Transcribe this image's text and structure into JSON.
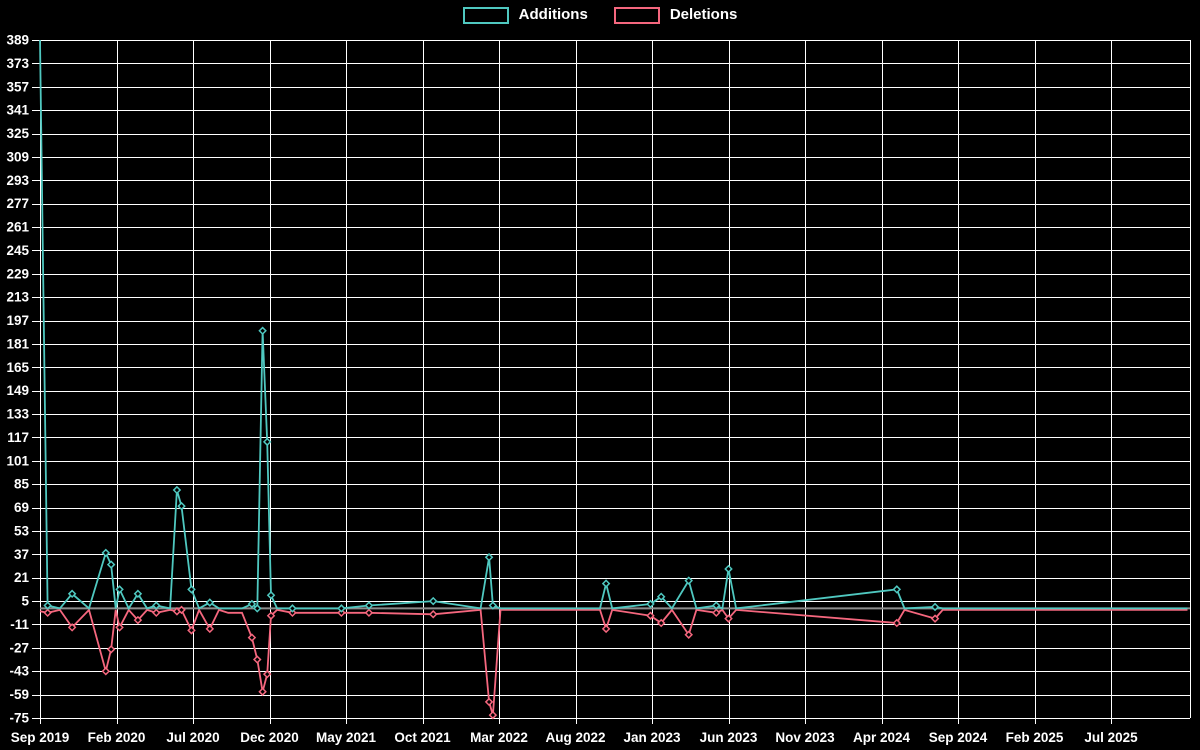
{
  "legend": {
    "items": [
      {
        "label": "Additions",
        "color": "#4fc8c0"
      },
      {
        "label": "Deletions",
        "color": "#f5677e"
      }
    ]
  },
  "colors": {
    "background": "#000000",
    "grid": "#ffffff",
    "zero_line": "#8c8c8c",
    "text": "#ffffff",
    "additions": "#4fc8c0",
    "deletions": "#f5677e"
  },
  "chart_data": {
    "type": "line",
    "title": "",
    "xlabel": "",
    "ylabel": "",
    "grid": true,
    "legend_position": "top-center",
    "x_ticks": [
      "Sep 2019",
      "Feb 2020",
      "Jul 2020",
      "Dec 2020",
      "May 2021",
      "Oct 2021",
      "Mar 2022",
      "Aug 2022",
      "Jan 2023",
      "Jun 2023",
      "Nov 2023",
      "Apr 2024",
      "Sep 2024",
      "Feb 2025",
      "Jul 2025"
    ],
    "x_tick_interval_months": 5,
    "xlim_months": [
      0,
      75
    ],
    "y_ticks": [
      389,
      373,
      357,
      341,
      325,
      309,
      293,
      277,
      261,
      245,
      229,
      213,
      197,
      181,
      165,
      149,
      133,
      117,
      101,
      85,
      69,
      53,
      37,
      21,
      5,
      -11,
      -27,
      -43,
      -59,
      -75
    ],
    "ylim": [
      -75,
      389
    ],
    "series": [
      {
        "name": "Additions",
        "color": "#4fc8c0"
      },
      {
        "name": "Deletions",
        "color": "#f5677e"
      }
    ],
    "points_format": [
      "months_since_sep_2019",
      "additions",
      "deletions",
      "marker_visible"
    ],
    "points": [
      [
        0,
        389,
        -2,
        0
      ],
      [
        0.5,
        2,
        -3,
        1
      ],
      [
        1.3,
        0,
        -1,
        0
      ],
      [
        2.1,
        10,
        -13,
        1
      ],
      [
        3.2,
        0,
        -1,
        0
      ],
      [
        4.3,
        38,
        -43,
        1
      ],
      [
        4.65,
        30,
        -28,
        1
      ],
      [
        4.95,
        0,
        -1,
        0
      ],
      [
        5.2,
        13,
        -13,
        1
      ],
      [
        5.8,
        0,
        -1,
        0
      ],
      [
        6.4,
        10,
        -8,
        1
      ],
      [
        7.0,
        0,
        -1,
        0
      ],
      [
        7.6,
        2,
        -3,
        1
      ],
      [
        8.5,
        0,
        -1,
        0
      ],
      [
        8.95,
        81,
        -2,
        1
      ],
      [
        9.25,
        70,
        -1,
        1
      ],
      [
        9.9,
        13,
        -15,
        1
      ],
      [
        10.4,
        0,
        -1,
        0
      ],
      [
        11.1,
        4,
        -14,
        1
      ],
      [
        11.7,
        0,
        -1,
        0
      ],
      [
        12.3,
        0,
        -3,
        0
      ],
      [
        13.2,
        0,
        -3,
        0
      ],
      [
        13.85,
        3,
        -20,
        1
      ],
      [
        14.2,
        0,
        -35,
        1
      ],
      [
        14.55,
        190,
        -57,
        1
      ],
      [
        14.85,
        114,
        -45,
        1
      ],
      [
        15.1,
        9,
        -5,
        1
      ],
      [
        15.5,
        0,
        -1,
        0
      ],
      [
        16.5,
        0,
        -3,
        1
      ],
      [
        19.7,
        0,
        -3,
        1
      ],
      [
        21.5,
        2,
        -3,
        1
      ],
      [
        25.7,
        5,
        -4,
        1
      ],
      [
        28.8,
        0,
        -1,
        0
      ],
      [
        29.35,
        35,
        -64,
        1
      ],
      [
        29.6,
        2,
        -73,
        1
      ],
      [
        30.1,
        0,
        -1,
        0
      ],
      [
        36.6,
        0,
        -1,
        0
      ],
      [
        37.0,
        17,
        -14,
        1
      ],
      [
        37.4,
        0,
        -1,
        0
      ],
      [
        39.9,
        3,
        -5,
        1
      ],
      [
        40.6,
        8,
        -10,
        1
      ],
      [
        41.3,
        0,
        -1,
        0
      ],
      [
        42.4,
        19,
        -18,
        1
      ],
      [
        42.9,
        0,
        -1,
        0
      ],
      [
        44.2,
        2,
        -3,
        1
      ],
      [
        44.6,
        0,
        -1,
        0
      ],
      [
        45.0,
        27,
        -7,
        1
      ],
      [
        45.5,
        0,
        -1,
        0
      ],
      [
        56.0,
        13,
        -10,
        1
      ],
      [
        56.5,
        0,
        -1,
        0
      ],
      [
        58.5,
        1,
        -7,
        1
      ],
      [
        59.0,
        0,
        -1,
        0
      ],
      [
        75.0,
        0,
        -1,
        0
      ]
    ]
  }
}
